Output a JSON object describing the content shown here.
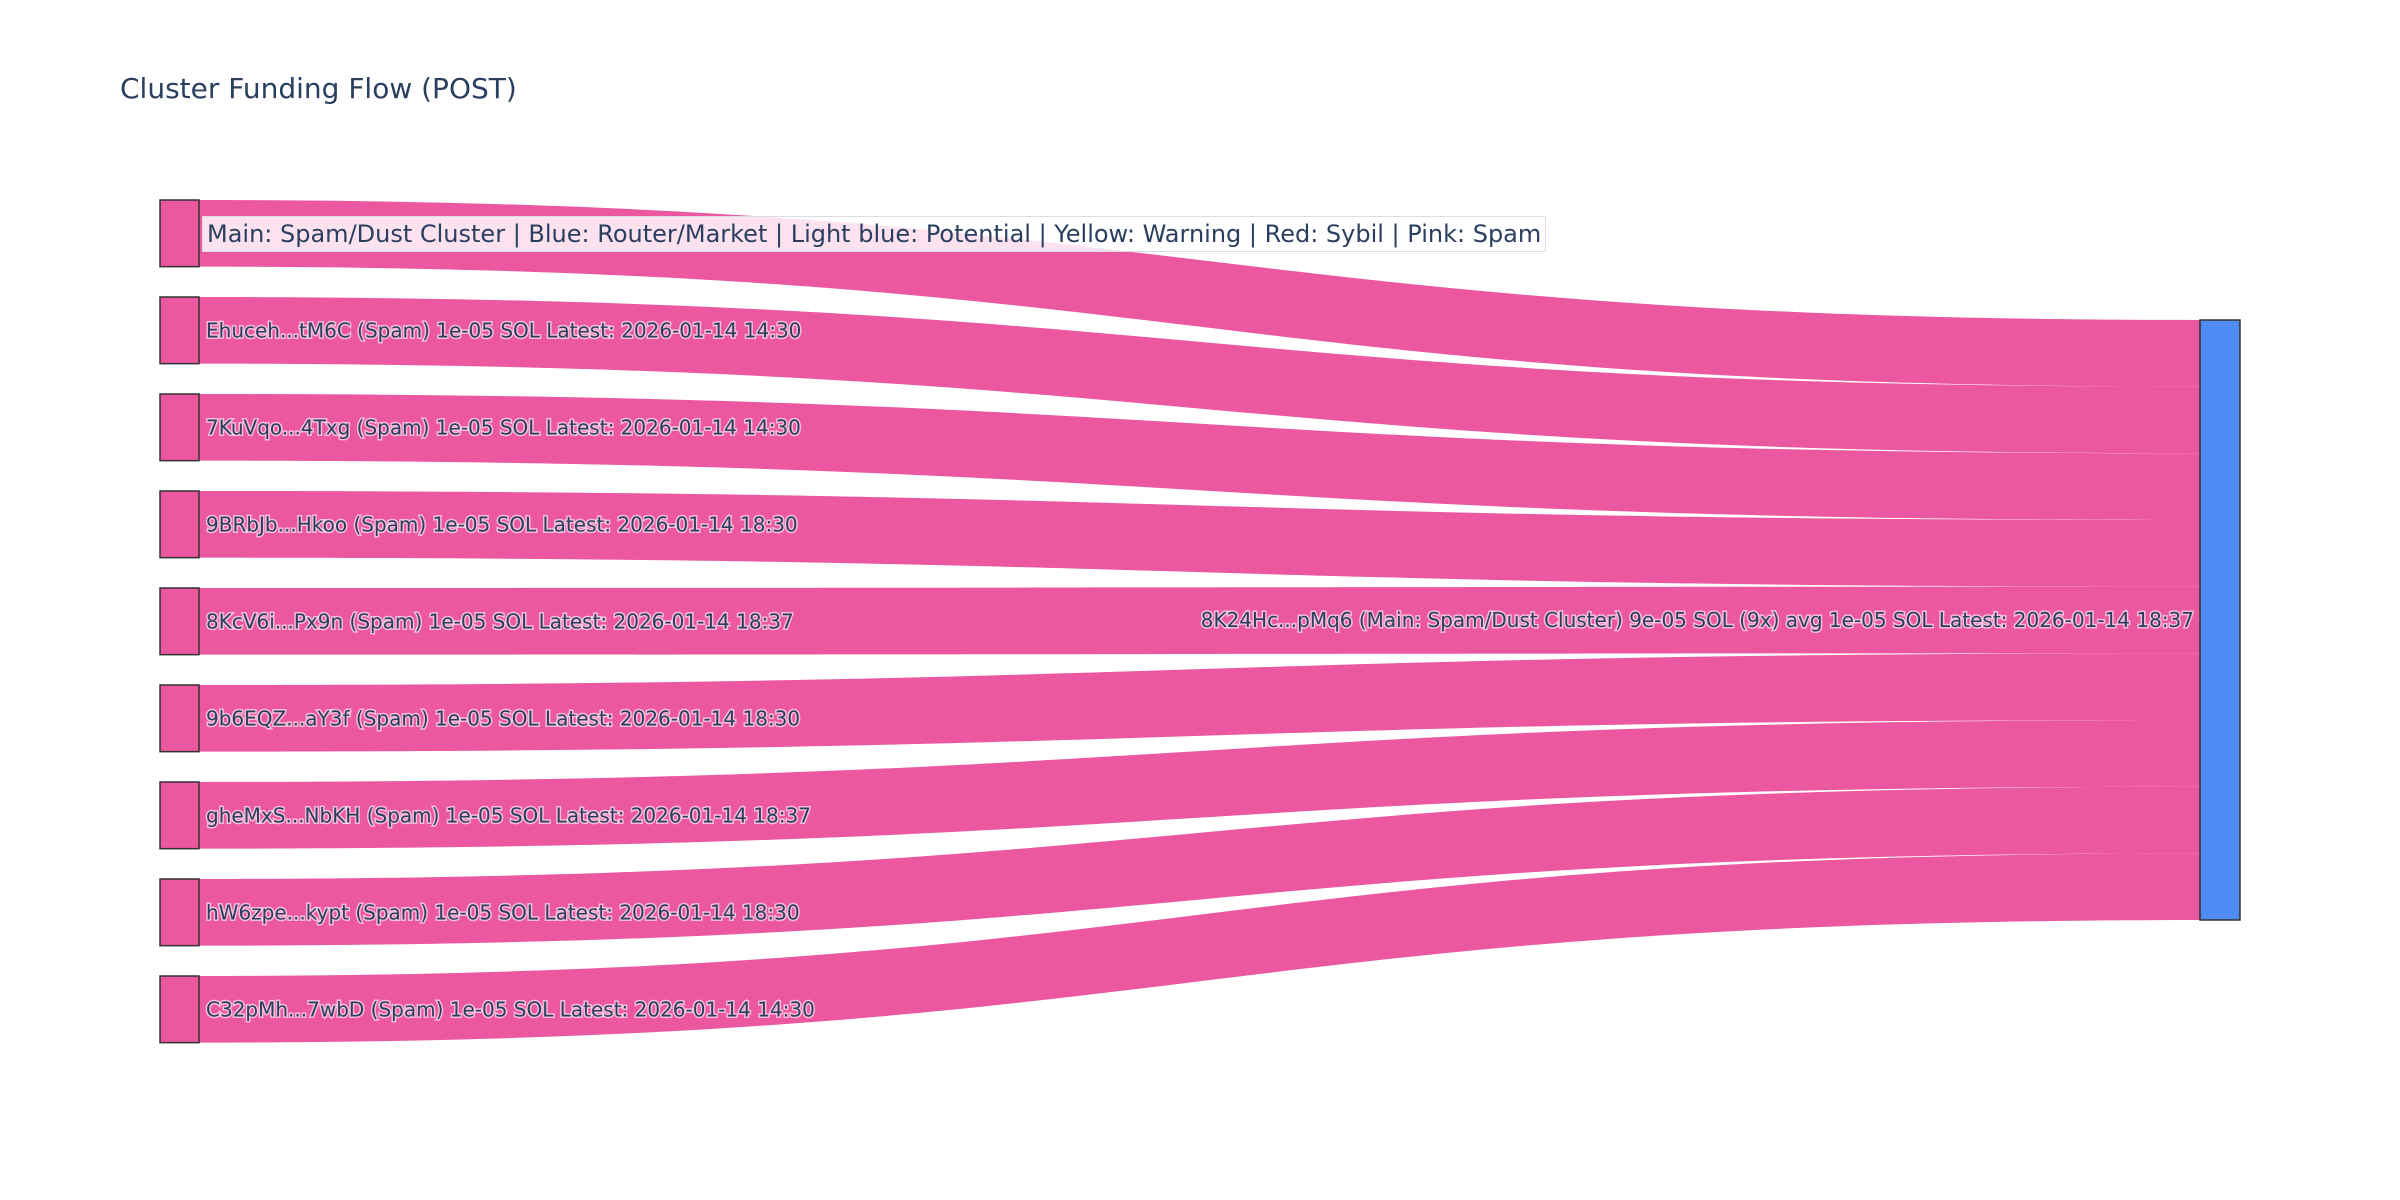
{
  "title": "Cluster Funding Flow (POST)",
  "legend": "Main: Spam/Dust Cluster | Blue: Router/Market | Light blue: Potential | Yellow: Warning | Red: Sybil | Pink: Spam",
  "colors": {
    "spam": "#ec589f",
    "router": "#4f8df5",
    "link": "#ec589f",
    "text": "#2a3f5f"
  },
  "chart_data": {
    "type": "sankey",
    "unit": "SOL",
    "sources": [
      {
        "label": "",
        "value": 1e-05
      },
      {
        "label": "Ehuceh...tM6C (Spam) 1e-05 SOL Latest: 2026-01-14 14:30",
        "value": 1e-05
      },
      {
        "label": "7KuVqo...4Txg (Spam) 1e-05 SOL Latest: 2026-01-14 14:30",
        "value": 1e-05
      },
      {
        "label": "9BRbJb...Hkoo (Spam) 1e-05 SOL Latest: 2026-01-14 18:30",
        "value": 1e-05
      },
      {
        "label": "8KcV6i...Px9n (Spam) 1e-05 SOL Latest: 2026-01-14 18:37",
        "value": 1e-05
      },
      {
        "label": "9b6EQZ...aY3f (Spam) 1e-05 SOL Latest: 2026-01-14 18:30",
        "value": 1e-05
      },
      {
        "label": "gheMxS...NbKH (Spam) 1e-05 SOL Latest: 2026-01-14 18:37",
        "value": 1e-05
      },
      {
        "label": "hW6zpe...kypt (Spam) 1e-05 SOL Latest: 2026-01-14 18:30",
        "value": 1e-05
      },
      {
        "label": "C32pMh...7wbD (Spam) 1e-05 SOL Latest: 2026-01-14 14:30",
        "value": 1e-05
      }
    ],
    "target": {
      "label": "8K24Hc...pMq6 (Main: Spam/Dust Cluster) 9e-05 SOL (9x) avg 1e-05 SOL Latest: 2026-01-14 18:37",
      "value": 9e-05
    }
  }
}
